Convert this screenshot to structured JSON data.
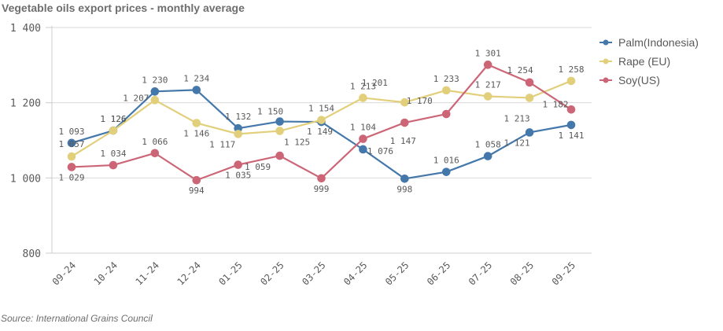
{
  "chart_data": {
    "type": "line",
    "title": "Vegetable oils export prices - monthly average",
    "source": "Source: International Grains Council",
    "xlabel": "",
    "ylabel": "",
    "categories": [
      "09-24",
      "10-24",
      "11-24",
      "12-24",
      "01-25",
      "02-25",
      "03-25",
      "04-25",
      "05-25",
      "06-25",
      "07-25",
      "08-25",
      "09-25"
    ],
    "ylim": [
      800,
      1400
    ],
    "yticks": [
      800,
      1000,
      1200,
      1400
    ],
    "ytick_labels": [
      "800",
      "1 000",
      "1 200",
      "1 400"
    ],
    "grid": true,
    "legend_position": "right",
    "series": [
      {
        "name": "Palm(Indonesia)",
        "color": "#4477aa",
        "values": [
          1093,
          1126,
          1230,
          1234,
          1132,
          1150,
          1149,
          1076,
          998,
          1016,
          1058,
          1121,
          1141
        ],
        "labels": [
          "1 093",
          "1 126",
          "1 230",
          "1 234",
          "1 132",
          "1 150",
          "1 149",
          "1 076",
          "998",
          "1 016",
          "1 058",
          "1 121",
          "1 141"
        ]
      },
      {
        "name": "Rape (EU)",
        "color": "#e2cf7b",
        "values": [
          1057,
          1126,
          1207,
          1146,
          1117,
          1125,
          1154,
          1213,
          1201,
          1233,
          1217,
          1213,
          1258
        ],
        "labels": [
          "1 057",
          "1 126",
          "1 207",
          "1 146",
          "1 117",
          "1 125",
          "1 154",
          "1 213",
          "1 201",
          "1 233",
          "1 217",
          "1 213",
          "1 258"
        ]
      },
      {
        "name": "Soy(US)",
        "color": "#cc6677",
        "values": [
          1029,
          1034,
          1066,
          994,
          1035,
          1059,
          999,
          1104,
          1147,
          1170,
          1301,
          1254,
          1182
        ],
        "labels": [
          "1 029",
          "1 034",
          "1 066",
          "994",
          "1 035",
          "1 059",
          "999",
          "1 104",
          "1 147",
          "1 170",
          "1 301",
          "1 254",
          "1 182"
        ]
      }
    ]
  }
}
